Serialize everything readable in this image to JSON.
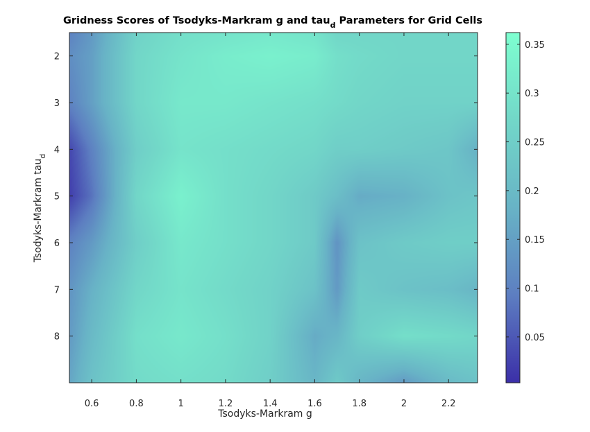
{
  "chart_data": {
    "type": "heatmap",
    "title": {
      "main": "Gridness Scores of Tsodyks-Markram g and tau",
      "sub": "d",
      "rest": " Parameters for Grid Cells"
    },
    "xlabel": "Tsodyks-Markram g",
    "ylabel": {
      "main": "Tsodyks-Markram tau",
      "sub": "d"
    },
    "xlim": [
      0.5,
      2.33
    ],
    "ylim": [
      1.5,
      9
    ],
    "y_reversed": true,
    "x_ticks": [
      0.6,
      0.8,
      1,
      1.2,
      1.4,
      1.6,
      1.8,
      2,
      2.2
    ],
    "x_tick_labels": [
      "0.6",
      "0.8",
      "1",
      "1.2",
      "1.4",
      "1.6",
      "1.8",
      "2",
      "2.2"
    ],
    "y_ticks": [
      2,
      3,
      4,
      5,
      6,
      7,
      8
    ],
    "y_tick_labels": [
      "2",
      "3",
      "4",
      "5",
      "6",
      "7",
      "8"
    ],
    "colorbar": {
      "range": [
        0.003,
        0.362
      ],
      "ticks": [
        0.05,
        0.1,
        0.15,
        0.2,
        0.25,
        0.3,
        0.35
      ],
      "tick_labels": [
        "0.05",
        "0.1",
        "0.15",
        "0.2",
        "0.25",
        "0.3",
        "0.35"
      ]
    },
    "colormap": [
      "#3b2fa8",
      "#5d7ec1",
      "#68b3c6",
      "#72d7c8",
      "#7effd0"
    ],
    "grid": false,
    "x": [
      0.5,
      0.6,
      0.8,
      1.0,
      1.2,
      1.4,
      1.6,
      1.7,
      1.8,
      2.0,
      2.2,
      2.33
    ],
    "y": [
      1.5,
      2,
      3,
      4,
      5,
      6,
      7,
      8,
      9
    ],
    "z": [
      [
        0.1,
        0.14,
        0.26,
        0.29,
        0.3,
        0.31,
        0.3,
        0.27,
        0.27,
        0.27,
        0.27,
        0.27
      ],
      [
        0.12,
        0.15,
        0.27,
        0.3,
        0.32,
        0.33,
        0.32,
        0.29,
        0.28,
        0.27,
        0.27,
        0.27
      ],
      [
        0.1,
        0.15,
        0.27,
        0.31,
        0.31,
        0.3,
        0.29,
        0.28,
        0.27,
        0.26,
        0.26,
        0.26
      ],
      [
        0.03,
        0.1,
        0.25,
        0.3,
        0.29,
        0.28,
        0.27,
        0.25,
        0.25,
        0.24,
        0.23,
        0.18
      ],
      [
        0.02,
        0.08,
        0.27,
        0.33,
        0.29,
        0.27,
        0.24,
        0.21,
        0.17,
        0.18,
        0.22,
        0.23
      ],
      [
        0.1,
        0.14,
        0.25,
        0.31,
        0.29,
        0.27,
        0.24,
        0.13,
        0.22,
        0.24,
        0.25,
        0.25
      ],
      [
        0.13,
        0.18,
        0.27,
        0.3,
        0.28,
        0.26,
        0.22,
        0.14,
        0.24,
        0.22,
        0.21,
        0.19
      ],
      [
        0.14,
        0.2,
        0.29,
        0.31,
        0.29,
        0.26,
        0.17,
        0.19,
        0.25,
        0.29,
        0.28,
        0.27
      ],
      [
        0.16,
        0.22,
        0.28,
        0.29,
        0.28,
        0.25,
        0.19,
        0.24,
        0.19,
        0.14,
        0.2,
        0.22
      ]
    ]
  }
}
